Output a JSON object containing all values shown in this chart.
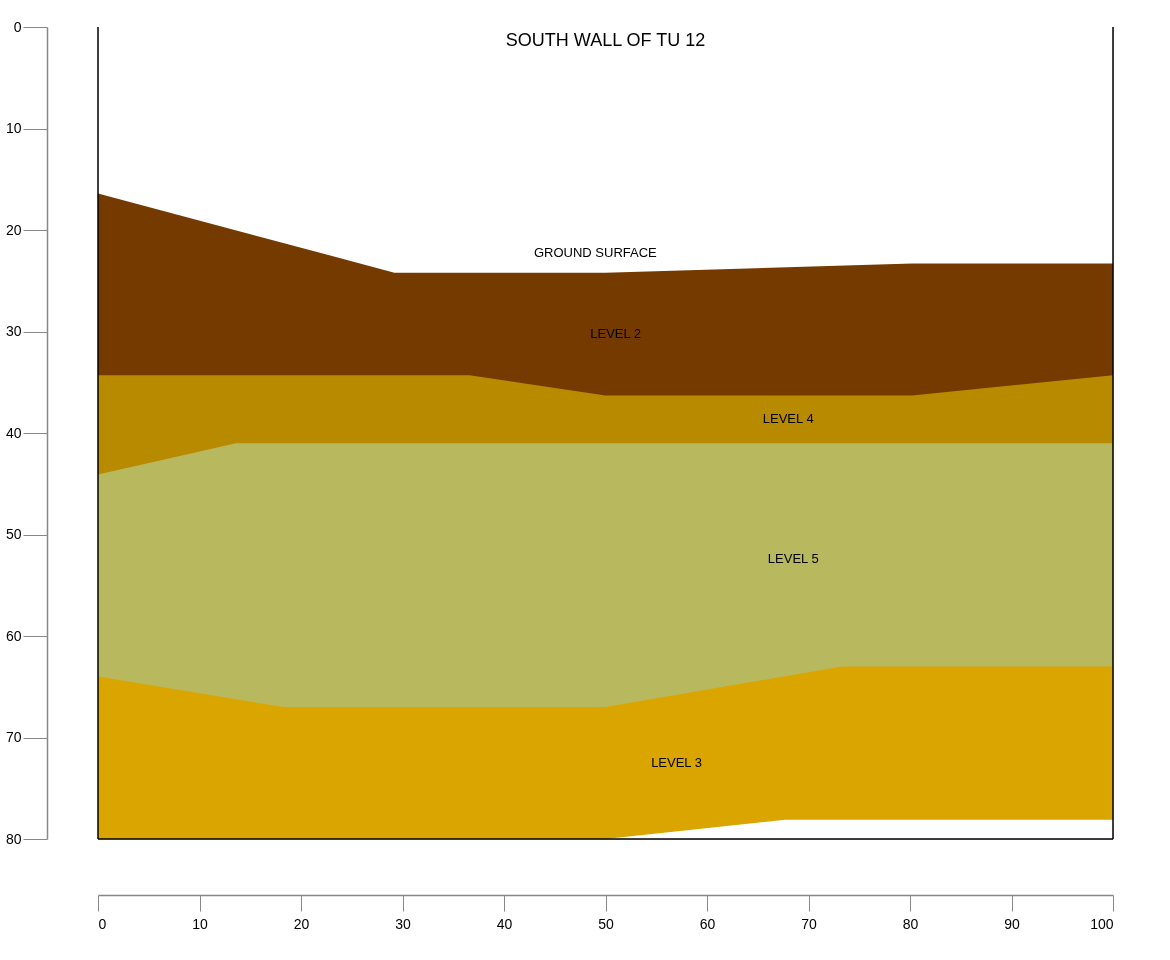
{
  "chart_data": {
    "type": "area",
    "title": "SOUTH WALL OF TU 12",
    "xlim": [
      0,
      100
    ],
    "xticks": [
      0,
      10,
      20,
      30,
      40,
      50,
      60,
      70,
      80,
      90,
      100
    ],
    "ylim": [
      80,
      0
    ],
    "yticks": [
      0,
      10,
      20,
      30,
      40,
      50,
      60,
      70,
      80
    ],
    "grid": false,
    "series": [
      {
        "name": "LEVEL 3",
        "color": "#dba500",
        "x": [
          0,
          50,
          67.7,
          100
        ],
        "values": [
          80,
          80,
          78.1,
          78.1
        ]
      },
      {
        "name": "LEVEL 5",
        "color": "#b8b95e",
        "x": [
          0,
          18.3,
          50,
          73.3,
          100
        ],
        "values": [
          64,
          67,
          67,
          63,
          63
        ]
      },
      {
        "name": "LEVEL 4",
        "color": "#b88a00",
        "x": [
          0,
          13.6,
          100
        ],
        "values": [
          44.1,
          41,
          41
        ]
      },
      {
        "name": "LEVEL 2",
        "color": "#743a00",
        "x": [
          0,
          36.6,
          50,
          80.2,
          100
        ],
        "values": [
          34.3,
          34.3,
          36.3,
          36.3,
          34.3
        ]
      },
      {
        "color": "#ffffff",
        "x": [
          0,
          29.2,
          50,
          80.2,
          100
        ],
        "values": [
          16.4,
          24.2,
          24.2,
          23.3,
          23.3
        ]
      }
    ],
    "annotations": [
      "GROUND SURFACE"
    ]
  }
}
